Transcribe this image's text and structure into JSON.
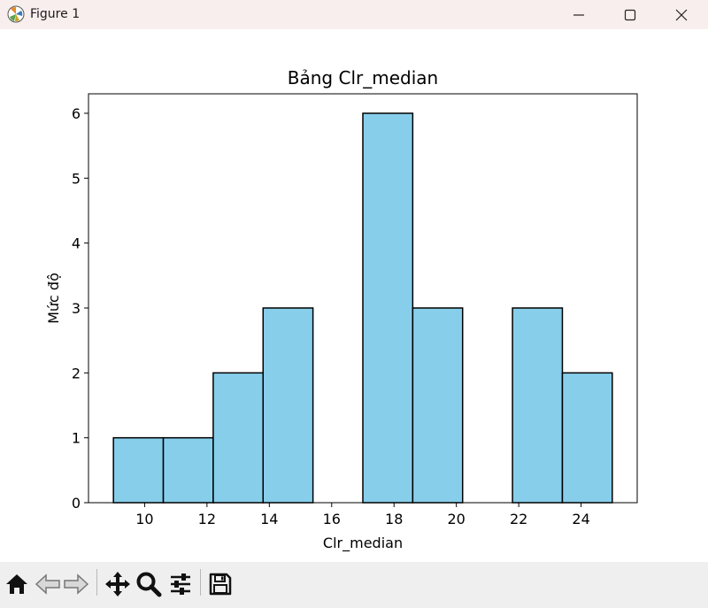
{
  "window": {
    "title": "Figure 1",
    "controls": [
      "minimize",
      "maximize",
      "close"
    ]
  },
  "toolbar": {
    "buttons": [
      "home-icon",
      "back-icon",
      "forward-icon",
      "pan-icon",
      "zoom-icon",
      "configure-icon",
      "save-icon"
    ]
  },
  "chart_data": {
    "type": "bar",
    "title": "Bảng Clr_median",
    "xlabel": "Clr_median",
    "ylabel": "Mức độ",
    "bin_edges": [
      9,
      10.6,
      12.2,
      13.8,
      15.4,
      17,
      18.6,
      20.2,
      21.8,
      23.4,
      25
    ],
    "values": [
      1,
      1,
      2,
      3,
      0,
      6,
      3,
      0,
      3,
      2
    ],
    "xlim": [
      8.2,
      25.8
    ],
    "ylim": [
      0,
      6.3
    ],
    "xticks": [
      10,
      12,
      14,
      16,
      18,
      20,
      22,
      24
    ],
    "yticks": [
      0,
      1,
      2,
      3,
      4,
      5,
      6
    ],
    "bar_color": "#87ceeb",
    "edge_color": "#000000",
    "grid": false,
    "legend": "none"
  }
}
